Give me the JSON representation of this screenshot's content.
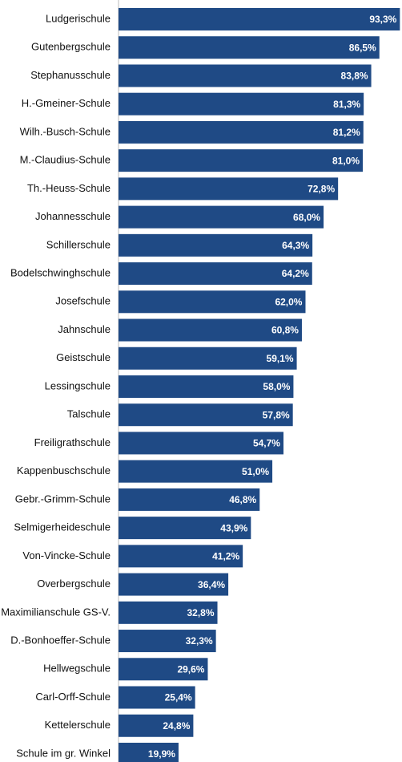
{
  "chart_data": {
    "type": "bar",
    "orientation": "horizontal",
    "categories": [
      "Ludgerischule",
      "Gutenbergschule",
      "Stephanusschule",
      "H.-Gmeiner-Schule",
      "Wilh.-Busch-Schule",
      "M.-Claudius-Schule",
      "Th.-Heuss-Schule",
      "Johannesschule",
      "Schillerschule",
      "Bodelschwinghschule",
      "Josefschule",
      "Jahnschule",
      "Geistschule",
      "Lessingschule",
      "Talschule",
      "Freiligrathschule",
      "Kappenbuschschule",
      "Gebr.-Grimm-Schule",
      "Selmigerheideschule",
      "Von-Vincke-Schule",
      "Overbergschule",
      "Maximilianschule GS-V.",
      "D.-Bonhoeffer-Schule",
      "Hellwegschule",
      "Carl-Orff-Schule",
      "Kettelerschule",
      "Schule im gr. Winkel"
    ],
    "values": [
      93.3,
      86.5,
      83.8,
      81.3,
      81.2,
      81.0,
      72.8,
      68.0,
      64.3,
      64.2,
      62.0,
      60.8,
      59.1,
      58.0,
      57.8,
      54.7,
      51.0,
      46.8,
      43.9,
      41.2,
      36.4,
      32.8,
      32.3,
      29.6,
      25.4,
      24.8,
      19.9
    ],
    "value_labels": [
      "93,3%",
      "86,5%",
      "83,8%",
      "81,3%",
      "81,2%",
      "81,0%",
      "72,8%",
      "68,0%",
      "64,3%",
      "64,2%",
      "62,0%",
      "60,8%",
      "59,1%",
      "58,0%",
      "57,8%",
      "54,7%",
      "51,0%",
      "46,8%",
      "43,9%",
      "41,2%",
      "36,4%",
      "32,8%",
      "32,3%",
      "29,6%",
      "25,4%",
      "24,8%",
      "19,9%"
    ],
    "color": "#1f4a85",
    "xlim": [
      0,
      94
    ]
  }
}
